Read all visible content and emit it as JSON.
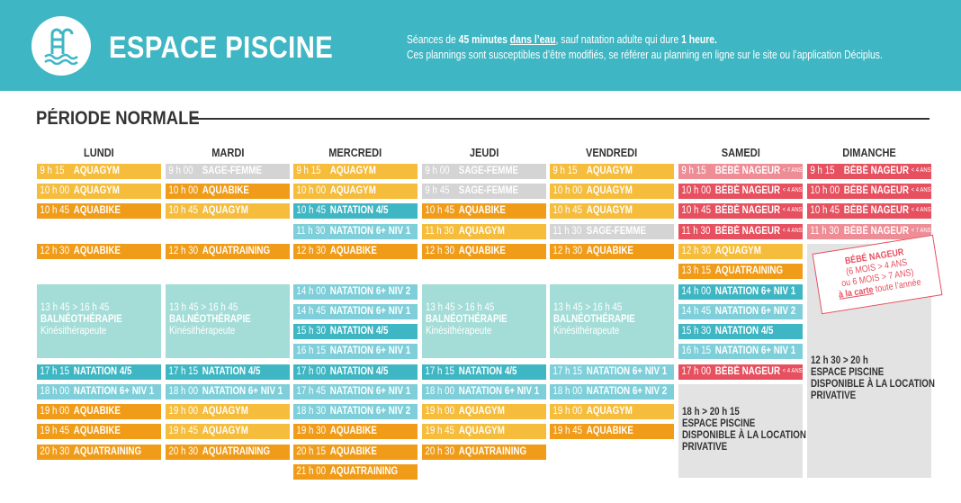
{
  "header": {
    "title": "ESPACE PISCINE",
    "logo_icon": "pool-ladder-icon",
    "note_line1": [
      {
        "text": "Séances de ",
        "style": "normal"
      },
      {
        "text": "45 minutes",
        "style": "bold"
      },
      {
        "text": " ",
        "style": "normal"
      },
      {
        "text": "dans l’eau",
        "style": "bold-underline"
      },
      {
        "text": ", sauf natation adulte qui dure ",
        "style": "normal"
      },
      {
        "text": "1 heure.",
        "style": "bold"
      }
    ],
    "note_line2": "Ces plannings sont susceptibles d’être modifiés, se référer au planning en ligne sur le site ou l’application Déciplus."
  },
  "section_title": "PÉRIODE NORMALE",
  "colors": {
    "header_bg": "#3fb6c3",
    "aquagym": "#f6bc3b",
    "aquabike_aquatraining": "#f09c19",
    "sage_femme": "#d4d4d4",
    "natation": "#3fb6c3",
    "natation_light": "#7ecfd9",
    "bebe_nageur": "#e6505f",
    "bebe_nageur_light": "#ee8d96",
    "balneo": "#a4ddd7",
    "location": "#e3e3e3"
  },
  "days": [
    {
      "name": "LUNDI",
      "sessions": [
        {
          "time": "9 h 15",
          "label": "AQUAGYM",
          "color": "yellow"
        },
        {
          "time": "10 h 00",
          "label": "AQUAGYM",
          "color": "yellow"
        },
        {
          "time": "10 h 45",
          "label": "AQUABIKE",
          "color": "orange"
        },
        {
          "time": "12 h 30",
          "label": "AQUABIKE",
          "color": "orange"
        },
        {
          "time": "17 h 15",
          "label": "NATATION 4/5",
          "color": "teal"
        },
        {
          "time": "18 h 00",
          "label": "NATATION 6+ NIV 1",
          "color": "lteal"
        },
        {
          "time": "19 h 00",
          "label": "AQUABIKE",
          "color": "orange"
        },
        {
          "time": "19 h 45",
          "label": "AQUABIKE",
          "color": "orange"
        },
        {
          "time": "20 h 30",
          "label": "AQUATRAINING",
          "color": "orange"
        }
      ],
      "block": {
        "time": "13 h 45 > 16 h 45",
        "title": "BALNÉOTHÉRAPIE",
        "subtitle": "Kinésithérapeute"
      }
    },
    {
      "name": "MARDI",
      "sessions": [
        {
          "time": "9 h 00",
          "label": "SAGE-FEMME",
          "color": "grey"
        },
        {
          "time": "10 h 00",
          "label": "AQUABIKE",
          "color": "orange"
        },
        {
          "time": "10 h 45",
          "label": "AQUAGYM",
          "color": "yellow"
        },
        {
          "time": "12 h 30",
          "label": "AQUATRAINING",
          "color": "orange"
        },
        {
          "time": "17 h 15",
          "label": "NATATION 4/5",
          "color": "teal"
        },
        {
          "time": "18 h 00",
          "label": "NATATION 6+ NIV 1",
          "color": "lteal"
        },
        {
          "time": "19 h 00",
          "label": "AQUAGYM",
          "color": "yellow"
        },
        {
          "time": "19 h 45",
          "label": "AQUAGYM",
          "color": "yellow"
        },
        {
          "time": "20 h 30",
          "label": "AQUATRAINING",
          "color": "orange"
        }
      ],
      "block": {
        "time": "13 h 45 > 16 h 45",
        "title": "BALNÉOTHÉRAPIE",
        "subtitle": "Kinésithérapeute"
      }
    },
    {
      "name": "MERCREDI",
      "sessions": [
        {
          "time": "9 h 15",
          "label": "AQUAGYM",
          "color": "yellow"
        },
        {
          "time": "10 h 00",
          "label": "AQUAGYM",
          "color": "yellow"
        },
        {
          "time": "10 h 45",
          "label": "NATATION 4/5",
          "color": "teal"
        },
        {
          "time": "11 h 30",
          "label": "NATATION 6+ NIV 1",
          "color": "lteal"
        },
        {
          "time": "12 h 30",
          "label": "AQUABIKE",
          "color": "orange"
        },
        {
          "time": "14 h 00",
          "label": "NATATION 6+ NIV 2",
          "color": "lteal"
        },
        {
          "time": "14 h 45",
          "label": "NATATION 6+ NIV 1",
          "color": "lteal"
        },
        {
          "time": "15 h 30",
          "label": "NATATION 4/5",
          "color": "teal"
        },
        {
          "time": "16 h 15",
          "label": "NATATION 6+ NIV 1",
          "color": "lteal"
        },
        {
          "time": "17 h 00",
          "label": "NATATION 4/5",
          "color": "teal"
        },
        {
          "time": "17 h 45",
          "label": "NATATION 6+ NIV 1",
          "color": "lteal"
        },
        {
          "time": "18 h 30",
          "label": "NATATION 6+ NIV 2",
          "color": "lteal"
        },
        {
          "time": "19 h 30",
          "label": "AQUABIKE",
          "color": "orange"
        },
        {
          "time": "20 h 15",
          "label": "AQUABIKE",
          "color": "orange"
        },
        {
          "time": "21 h 00",
          "label": "AQUATRAINING",
          "color": "orange"
        }
      ]
    },
    {
      "name": "JEUDI",
      "sessions": [
        {
          "time": "9 h 00",
          "label": "SAGE-FEMME",
          "color": "grey"
        },
        {
          "time": "9 h 45",
          "label": "SAGE-FEMME",
          "color": "grey"
        },
        {
          "time": "10 h 45",
          "label": "AQUABIKE",
          "color": "orange"
        },
        {
          "time": "11 h 30",
          "label": "AQUAGYM",
          "color": "yellow"
        },
        {
          "time": "12 h 30",
          "label": "AQUABIKE",
          "color": "orange"
        },
        {
          "time": "17 h 15",
          "label": "NATATION 4/5",
          "color": "teal"
        },
        {
          "time": "18 h 00",
          "label": "NATATION 6+ NIV 1",
          "color": "lteal"
        },
        {
          "time": "19 h 00",
          "label": "AQUAGYM",
          "color": "yellow"
        },
        {
          "time": "19 h 45",
          "label": "AQUAGYM",
          "color": "yellow"
        },
        {
          "time": "20 h 30",
          "label": "AQUATRAINING",
          "color": "orange"
        }
      ],
      "block": {
        "time": "13 h 45 > 16 h 45",
        "title": "BALNÉOTHÉRAPIE",
        "subtitle": "Kinésithérapeute"
      }
    },
    {
      "name": "VENDREDI",
      "sessions": [
        {
          "time": "9 h 15",
          "label": "AQUAGYM",
          "color": "yellow"
        },
        {
          "time": "10 h 00",
          "label": "AQUAGYM",
          "color": "yellow"
        },
        {
          "time": "10 h 45",
          "label": "AQUAGYM",
          "color": "yellow"
        },
        {
          "time": "11 h 30",
          "label": "SAGE-FEMME",
          "color": "grey"
        },
        {
          "time": "12 h 30",
          "label": "AQUABIKE",
          "color": "orange"
        },
        {
          "time": "17 h 15",
          "label": "NATATION 6+ NIV 1",
          "color": "lteal"
        },
        {
          "time": "18 h 00",
          "label": "NATATION 6+ NIV 2",
          "color": "lteal"
        },
        {
          "time": "19 h 00",
          "label": "AQUAGYM",
          "color": "yellow"
        },
        {
          "time": "19 h 45",
          "label": "AQUABIKE",
          "color": "orange"
        }
      ],
      "block": {
        "time": "13 h 45 > 16 h 45",
        "title": "BALNÉOTHÉRAPIE",
        "subtitle": "Kinésithérapeute"
      }
    },
    {
      "name": "SAMEDI",
      "sessions": [
        {
          "time": "9 h 15",
          "label": "BÉBÉ NAGEUR",
          "sub": "< 7 ANS",
          "color": "lred"
        },
        {
          "time": "10 h 00",
          "label": "BÉBÉ NAGEUR",
          "sub": "< 4 ANS",
          "color": "red"
        },
        {
          "time": "10 h 45",
          "label": "BÉBÉ NAGEUR",
          "sub": "< 4 ANS",
          "color": "red"
        },
        {
          "time": "11 h 30",
          "label": "BÉBÉ NAGEUR",
          "sub": "< 4 ANS",
          "color": "red"
        },
        {
          "time": "12 h 30",
          "label": "AQUAGYM",
          "color": "yellow"
        },
        {
          "time": "13 h 15",
          "label": "AQUATRAINING",
          "color": "orange"
        },
        {
          "time": "14 h 00",
          "label": "NATATION 6+ NIV 1",
          "color": "teal"
        },
        {
          "time": "14 h 45",
          "label": "NATATION 6+ NIV 2",
          "color": "lteal"
        },
        {
          "time": "15 h 30",
          "label": "NATATION 4/5",
          "color": "teal"
        },
        {
          "time": "16 h 15",
          "label": "NATATION 6+ NIV 1",
          "color": "lteal"
        },
        {
          "time": "17 h 00",
          "label": "BÉBÉ NAGEUR",
          "sub": "< 4 ANS",
          "color": "red"
        }
      ],
      "location": {
        "time": "18 h > 20 h 15",
        "line1": "ESPACE PISCINE",
        "line2": "DISPONIBLE À LA LOCATION",
        "line3": "PRIVATIVE"
      }
    },
    {
      "name": "DIMANCHE",
      "sessions": [
        {
          "time": "9 h 15",
          "label": "BÉBÉ NAGEUR",
          "sub": "< 4 ANS",
          "color": "red"
        },
        {
          "time": "10 h 00",
          "label": "BÉBÉ NAGEUR",
          "sub": "< 4 ANS",
          "color": "red"
        },
        {
          "time": "10 h 45",
          "label": "BÉBÉ NAGEUR",
          "sub": "< 4 ANS",
          "color": "red"
        },
        {
          "time": "11 h 30",
          "label": "BÉBÉ NAGEUR",
          "sub": "< 7 ANS",
          "color": "lred"
        }
      ],
      "location": {
        "time": "12 h 30 > 20 h",
        "line1": "ESPACE PISCINE",
        "line2": "DISPONIBLE À LA LOCATION",
        "line3": "PRIVATIVE"
      }
    }
  ],
  "stamp": {
    "line1": "BÉBÉ NAGEUR",
    "line2": "(6 MOIS > 4 ANS",
    "line3": "ou 6 MOIS > 7 ANS)",
    "line4_link": "à la carte",
    "line4_rest": " toute l’année"
  }
}
